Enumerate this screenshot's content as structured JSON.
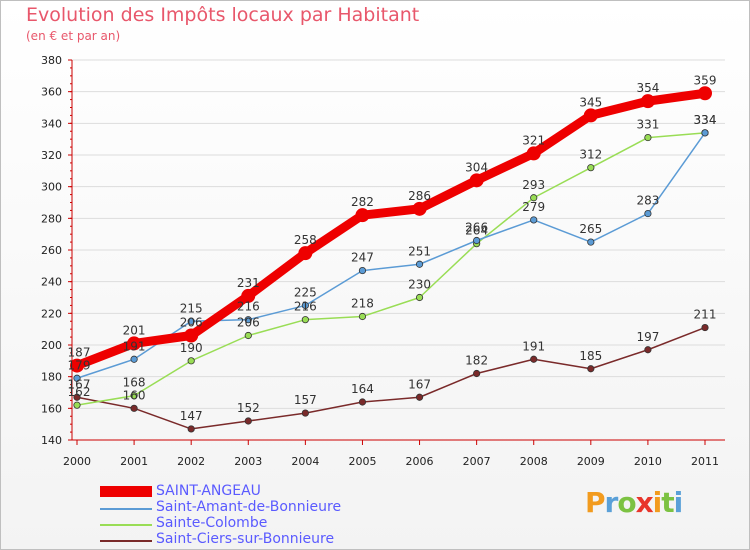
{
  "header": {
    "title": "Evolution des Impôts locaux par Habitant",
    "subtitle": "(en € et par an)"
  },
  "chart_data": {
    "type": "line",
    "title": "Evolution des Impôts locaux par Habitant",
    "subtitle": "(en € et par an)",
    "xlabel": "",
    "ylabel": "",
    "ylim": [
      140,
      380
    ],
    "yticks": [
      140,
      160,
      180,
      200,
      220,
      240,
      260,
      280,
      300,
      320,
      340,
      360,
      380
    ],
    "categories": [
      "2000",
      "2001",
      "2002",
      "2003",
      "2004",
      "2005",
      "2006",
      "2007",
      "2008",
      "2009",
      "2010",
      "2011"
    ],
    "series": [
      {
        "name": "SAINT-ANGEAU",
        "color": "#ee0000",
        "values": [
          187,
          201,
          206,
          231,
          258,
          282,
          286,
          304,
          321,
          345,
          354,
          359
        ]
      },
      {
        "name": "Saint-Amant-de-Bonnieure",
        "color": "#5b9bd5",
        "values": [
          179,
          191,
          215,
          216,
          225,
          247,
          251,
          266,
          279,
          265,
          283,
          334
        ]
      },
      {
        "name": "Sainte-Colombe",
        "color": "#99dd55",
        "values": [
          162,
          168,
          190,
          206,
          216,
          218,
          230,
          264,
          293,
          312,
          331,
          334
        ]
      },
      {
        "name": "Saint-Ciers-sur-Bonnieure",
        "color": "#7a2a2a",
        "values": [
          167,
          160,
          147,
          152,
          157,
          164,
          167,
          182,
          191,
          185,
          197,
          211
        ]
      }
    ],
    "legend_position": "bottom-left"
  },
  "legend": {
    "items": [
      {
        "label": "SAINT-ANGEAU",
        "color": "#ee0000"
      },
      {
        "label": "Saint-Amant-de-Bonnieure",
        "color": "#5b9bd5"
      },
      {
        "label": "Sainte-Colombe",
        "color": "#99dd55"
      },
      {
        "label": "Saint-Ciers-sur-Bonnieure",
        "color": "#7a2a2a"
      }
    ]
  },
  "logo": {
    "text": "Proxiti",
    "icon": "proxiti-logo"
  }
}
